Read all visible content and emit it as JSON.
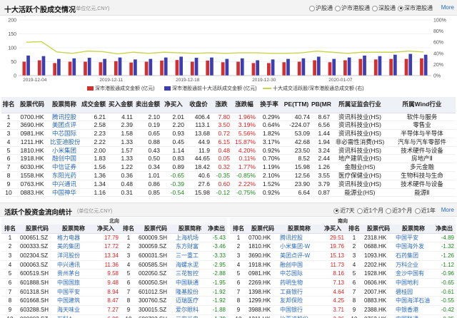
{
  "header": {
    "title": "十大活跃个股成交情况",
    "unit": "(单位亿元,CNY)",
    "options": [
      "沪股通",
      "沪市港股通",
      "深股通",
      "深市港股通"
    ],
    "selected": 3,
    "more": "More"
  },
  "chart_data": {
    "type": "bar",
    "x": [
      "2019-12-04",
      "2019-12-05",
      "2019-12-06",
      "2019-12-09",
      "2019-12-10",
      "2019-12-11",
      "2019-12-12",
      "2019-12-13",
      "2019-12-16",
      "2019-12-17",
      "2019-12-18",
      "2019-12-19",
      "2019-12-20",
      "2019-12-23",
      "2019-12-24",
      "2019-12-25",
      "2019-12-26",
      "2019-12-27",
      "2019-12-30",
      "2019-12-31",
      "2020-01-02",
      "2020-01-03",
      "2020-01-06",
      "2020-01-07",
      "2020-01-08",
      "2020-01-09",
      "2020-01-10"
    ],
    "xtick_labels": [
      "2019-12-04",
      "2019-12-11",
      "2019-12-18",
      "2019-12-30",
      "2020-01-07"
    ],
    "xtick_index": [
      0,
      5,
      10,
      15,
      20
    ],
    "series": [
      {
        "name": "深市港股通成交金额 (亿元)",
        "color": "#d32f2f",
        "values": [
          50,
          55,
          45,
          50,
          50,
          48,
          52,
          47,
          50,
          54,
          56,
          50,
          54,
          48,
          50,
          45,
          45,
          48,
          50,
          55,
          48,
          55,
          60,
          58,
          60,
          60,
          62
        ]
      },
      {
        "name": "深市港股通前十大活跃成交金额 (亿元)",
        "color": "#3b3fb3",
        "values": [
          72,
          70,
          60,
          62,
          64,
          60,
          65,
          58,
          60,
          65,
          68,
          64,
          65,
          60,
          62,
          55,
          58,
          60,
          62,
          68,
          60,
          65,
          72,
          70,
          75,
          78,
          75
        ]
      },
      {
        "name": "十大成交活跃股/深市港股通总成交额 (右)",
        "color": "#c9d44b",
        "axis": "right",
        "values": [
          120,
          122,
          85,
          80,
          88,
          86,
          78,
          84,
          80,
          84,
          82,
          80,
          82,
          80,
          82,
          82,
          80,
          80,
          82,
          88,
          84,
          80,
          84,
          84,
          84,
          88,
          85
        ]
      }
    ],
    "ylim": [
      0,
      200
    ],
    "yticks": [
      0,
      50,
      100,
      150,
      200
    ],
    "y2lim": [
      0,
      1
    ],
    "y2ticks_labels": [
      "0%",
      "20%",
      "40%",
      "60%",
      "80%",
      "100%"
    ],
    "grid": true
  },
  "legend": [
    {
      "label": "深市港股通成交金额 (亿元)",
      "color": "#d32f2f",
      "kind": "bar"
    },
    {
      "label": "深市港股通前十大活跃成交金额 (亿元)",
      "color": "#3b3fb3",
      "kind": "bar"
    },
    {
      "label": "十大成交活跃股/深市港股通总成交额 (右)",
      "color": "#c9d44b",
      "kind": "line"
    }
  ],
  "top10": {
    "columns": [
      "排名",
      "股票代码",
      "股票简称",
      "成交金额",
      "买入金额",
      "卖出金额",
      "净买入",
      "收盘价",
      "涨跌",
      "涨跌幅",
      "换手率",
      "PE(TTM)",
      "PB(MRQ)",
      "所属证监会行业",
      "所属Wind行业"
    ],
    "rows": [
      [
        "1",
        "0700.HK",
        "腾讯控股",
        "6.21",
        "4.11",
        "2.10",
        "2.01",
        "406.4",
        "7.80",
        "1.96%",
        "0.29%",
        "40.74",
        "8.67",
        "资讯科技业(HS)",
        "软件与服务"
      ],
      [
        "2",
        "3690.HK",
        "美团点评",
        "2.58",
        "2.39",
        "0.19",
        "2.20",
        "113.1",
        "3.50",
        "3.19%",
        "0.64%",
        "-224.07",
        "6.56",
        "资讯科技业(HS)",
        "零售业"
      ],
      [
        "3",
        "0981.HK",
        "中芯国际",
        "2.23",
        "1.58",
        "0.65",
        "0.93",
        "13.68",
        "0.72",
        "5.56%",
        "1.82%",
        "53.09",
        "1.44",
        "资讯科技业(HS)",
        "半导体与半导体"
      ],
      [
        "4",
        "1211.HK",
        "比亚迪股份",
        "2.22",
        "1.33",
        "0.88",
        "0.45",
        "44.9",
        "6.15",
        "15.87%",
        "3.17%",
        "42.68",
        "1.94",
        "非必需性消费(HS)",
        "汽车与汽车零部件"
      ],
      [
        "5",
        "1810.HK",
        "小米集团",
        "2.00",
        "1.57",
        "0.43",
        "1.14",
        "11.9",
        "0.48",
        "4.20%",
        "0.92%",
        "23.50",
        "3.24",
        "资讯科技业(HS)",
        "技术硬件与设备"
      ],
      [
        "6",
        "1918.HK",
        "融创中国",
        "1.83",
        "1.33",
        "0.50",
        "0.83",
        "44.65",
        "0.05",
        "0.11%",
        "0.70%",
        "8.52",
        "2.44",
        "地产建筑业(HS)",
        "房地产Ⅱ"
      ],
      [
        "7",
        "6030.HK",
        "中信证券",
        "1.56",
        "1.22",
        "0.34",
        "0.89",
        "18.42",
        "0.32",
        "1.77%",
        "1.19%",
        "15.98",
        "1.26",
        "金融业(HS)",
        "多元金融"
      ],
      [
        "8",
        "1558.HK",
        "东阳光药",
        "1.36",
        "0.36",
        "1.01",
        "-0.65",
        "40.6",
        "-0.35",
        "-0.85%",
        "2.10%",
        "12.56",
        "3.55",
        "医疗保健业(HS)",
        "生物科技与生命"
      ],
      [
        "9",
        "0763.HK",
        "中兴通讯",
        "1.34",
        "0.48",
        "0.86",
        "-0.39",
        "27.6",
        "0.60",
        "2.22%",
        "1.52%",
        "23.90",
        "3.79",
        "资讯科技业(HS)",
        "技术硬件与设备"
      ],
      [
        "10",
        "0883.HK",
        "中国神华",
        "1.16",
        "0.31",
        "0.85",
        "-0.54",
        "15.98",
        "-0.12",
        "-0.75%",
        "0.92%",
        "6.64",
        "0.87",
        "能源业(HS)",
        "能源Ⅱ"
      ]
    ]
  },
  "flow": {
    "title": "活跃个股资金流向统计",
    "unit": "(单位亿元,CNY)",
    "options": [
      "近7天",
      "近1个月",
      "近3个月",
      "近1年"
    ],
    "selected": 0,
    "more": "More",
    "north_label": "北向",
    "south_label": "南向",
    "columns": [
      "排名",
      "股票代码",
      "股票简称",
      "净买入",
      "股票代码",
      "股票简称",
      "净卖出"
    ],
    "north": [
      [
        "1",
        "000651.SZ",
        "格力电器",
        "17.79",
        "1",
        "600009.SH",
        "上海机场",
        "-5.43"
      ],
      [
        "2",
        "000333.SZ",
        "美的集团",
        "17.72",
        "2",
        "300059.SZ",
        "东方财富",
        "-3.46"
      ],
      [
        "3",
        "002304.SZ",
        "洋河股份",
        "13.34",
        "3",
        "600031.SH",
        "三一重工",
        "-3.33"
      ],
      [
        "4",
        "000063.SZ",
        "中兴通讯",
        "11.36",
        "4",
        "600585.SH",
        "海螺水泥",
        "-2.95"
      ],
      [
        "5",
        "600519.SH",
        "贵州茅台",
        "9.58",
        "5",
        "002050.SZ",
        "三花智控",
        "-2.88"
      ],
      [
        "6",
        "601888.SH",
        "中国国旅",
        "9.48",
        "6",
        "600050.SH",
        "中国联通",
        "-1.95"
      ],
      [
        "7",
        "601318.SH",
        "中国平安",
        "8.94",
        "7",
        "601012.SH",
        "隆基股份",
        "-1.92"
      ],
      [
        "8",
        "601668.SH",
        "中国建筑",
        "8.47",
        "8",
        "300760.SZ",
        "迈瑞医疗",
        "-1.92"
      ],
      [
        "9",
        "603288.SH",
        "海天味业",
        "7.27",
        "9",
        "300015.SZ",
        "爱尔眼科",
        "-1.88"
      ],
      [
        "10",
        "000002.SZ",
        "万科A",
        "6.99",
        "10",
        "600703.SH",
        "三安光电",
        "-1.79"
      ]
    ],
    "south": [
      [
        "1",
        "0700.HK",
        "腾讯控股",
        "29.51",
        "1",
        "2318.HK",
        "中国平安",
        "-4.89"
      ],
      [
        "2",
        "1810.HK",
        "小米集团-W",
        "19.76",
        "2",
        "0688.HK",
        "中国海外发",
        "-1.32"
      ],
      [
        "3",
        "3690.HK",
        "美团点评-W",
        "15.13",
        "3",
        "1093.HK",
        "石药集团",
        "-1.26"
      ],
      [
        "4",
        "1918.HK",
        "融创中国",
        "11.73",
        "4",
        "2202.HK",
        "万科企业",
        "-1.12"
      ],
      [
        "5",
        "0981.HK",
        "中芯国际",
        "8.16",
        "5",
        "1928.HK",
        "金沙中国有",
        "-0.96"
      ],
      [
        "6",
        "2269.HK",
        "药明生物",
        "7.13",
        "6",
        "0606.HK",
        "中国地利",
        "-0.65"
      ],
      [
        "7",
        "1398.HK",
        "工商银行",
        "4.64",
        "7",
        "2007.HK",
        "碧桂园",
        "-0.61"
      ],
      [
        "8",
        "1299.HK",
        "友邦保险",
        "4.25",
        "8",
        "0883.HK",
        "中国海洋石油",
        "-0.55"
      ],
      [
        "9",
        "3988.HK",
        "中国银行",
        "3.71",
        "9",
        "2388.HK",
        "中银香港",
        "-0.42"
      ],
      [
        "10",
        "1211.HK",
        "比亚迪股份",
        "3.26",
        "10",
        "0762.HK",
        "中国联通",
        "-0.35"
      ]
    ]
  }
}
